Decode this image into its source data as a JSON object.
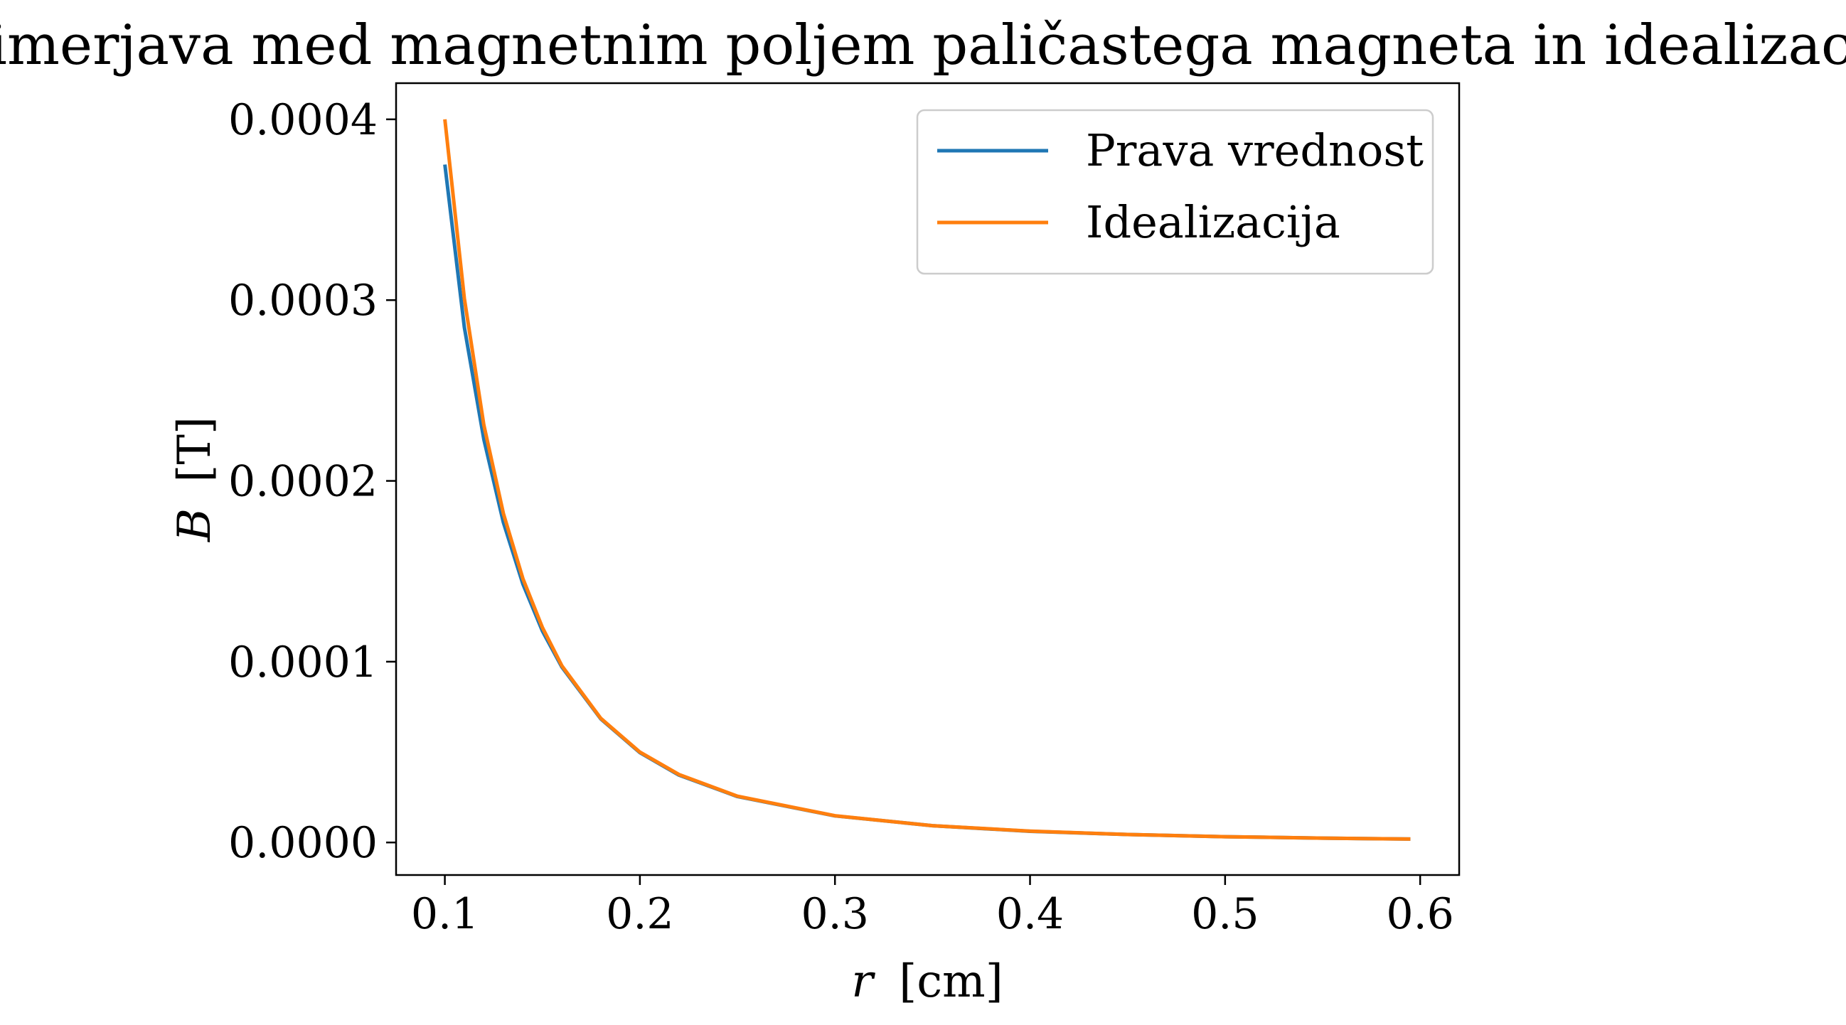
{
  "chart_data": {
    "type": "line",
    "title": "Primerjava med magnetnim poljem paličastega magneta in idealizacijo",
    "xlabel_var": "r",
    "xlabel_unit": "[cm]",
    "ylabel_var": "B",
    "ylabel_unit": "[T]",
    "xlim": [
      0.075,
      0.62
    ],
    "ylim": [
      -1.8e-05,
      0.00042
    ],
    "x_ticks": [
      0.1,
      0.2,
      0.3,
      0.4,
      0.5,
      0.6
    ],
    "x_tick_labels": [
      "0.1",
      "0.2",
      "0.3",
      "0.4",
      "0.5",
      "0.6"
    ],
    "y_ticks": [
      0,
      0.0001,
      0.0002,
      0.0003,
      0.0004
    ],
    "y_tick_labels": [
      "0.0000",
      "0.0001",
      "0.0002",
      "0.0003",
      "0.0004"
    ],
    "grid": false,
    "legend_position": "top-right",
    "series": [
      {
        "name": "Prava vrednost",
        "color": "#1f77b4",
        "x": [
          0.1,
          0.11,
          0.12,
          0.13,
          0.14,
          0.15,
          0.16,
          0.18,
          0.2,
          0.22,
          0.25,
          0.3,
          0.35,
          0.4,
          0.45,
          0.5,
          0.55,
          0.595
        ],
        "y": [
          0.000375,
          0.000285,
          0.000223,
          0.000177,
          0.000143,
          0.000117,
          9.7e-05,
          6.83e-05,
          4.97e-05,
          3.73e-05,
          2.54e-05,
          1.47e-05,
          9.3e-06,
          6.2e-06,
          4.4e-06,
          3.2e-06,
          2.4e-06,
          1.9e-06
        ]
      },
      {
        "name": "Idealizacija",
        "color": "#ff7f0e",
        "x": [
          0.1,
          0.11,
          0.12,
          0.13,
          0.14,
          0.15,
          0.16,
          0.18,
          0.2,
          0.22,
          0.25,
          0.3,
          0.35,
          0.4,
          0.45,
          0.5,
          0.55,
          0.595
        ],
        "y": [
          0.0004,
          0.000301,
          0.000231,
          0.000182,
          0.000146,
          0.000119,
          9.77e-05,
          6.86e-05,
          5e-05,
          3.76e-05,
          2.56e-05,
          1.48e-05,
          9.3e-06,
          6.3e-06,
          4.4e-06,
          3.2e-06,
          2.4e-06,
          1.9e-06
        ]
      }
    ]
  }
}
